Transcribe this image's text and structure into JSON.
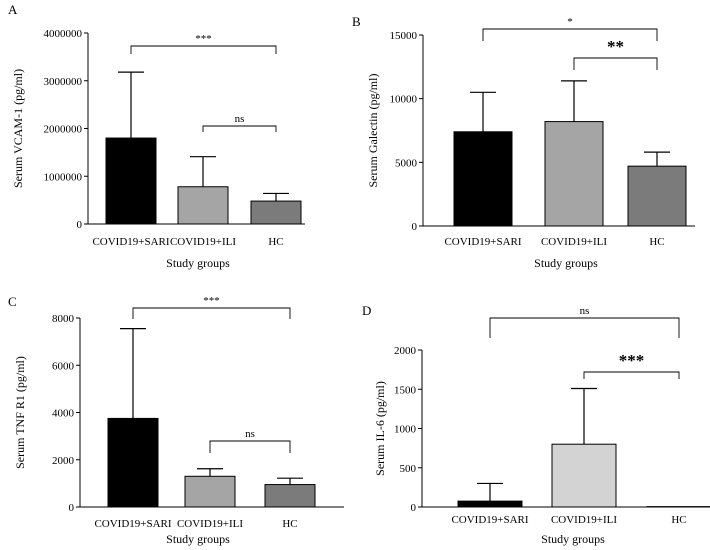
{
  "figure_title": "",
  "chart_data": [
    {
      "panel": "A",
      "type": "bar",
      "title": "",
      "xlabel": "Study groups",
      "ylabel": "Serum VCAM-1 (pg/ml)",
      "categories": [
        "COVID19+SARI",
        "COVID19+ILI",
        "HC"
      ],
      "values": [
        1800000,
        780000,
        480000
      ],
      "errors": [
        1380000,
        630000,
        160000
      ],
      "bar_colors": [
        "#000000",
        "#a5a5a5",
        "#7b7b7b"
      ],
      "ylim": [
        0,
        4000000
      ],
      "yticks": [
        "0",
        "1000000",
        "2000000",
        "3000000",
        "4000000"
      ],
      "significance": [
        {
          "from": 0,
          "to": 2,
          "label": "***",
          "size": "small"
        },
        {
          "from": 1,
          "to": 2,
          "label": "ns",
          "size": "small"
        }
      ]
    },
    {
      "panel": "B",
      "type": "bar",
      "title": "",
      "xlabel": "Study groups",
      "ylabel": "Serum Galectin (pg/ml)",
      "categories": [
        "COVID19+SARI",
        "COVID19+ILI",
        "HC"
      ],
      "values": [
        7400,
        8200,
        4700
      ],
      "errors": [
        3100,
        3200,
        1100
      ],
      "bar_colors": [
        "#000000",
        "#a5a5a5",
        "#7b7b7b"
      ],
      "ylim": [
        0,
        15000
      ],
      "yticks": [
        "0",
        "5000",
        "10000",
        "15000"
      ],
      "significance": [
        {
          "from": 0,
          "to": 2,
          "label": "*",
          "size": "small"
        },
        {
          "from": 1,
          "to": 2,
          "label": "**",
          "size": "large"
        }
      ]
    },
    {
      "panel": "C",
      "type": "bar",
      "title": "",
      "xlabel": "Study groups",
      "ylabel": "Serum TNF R1 (pg/ml)",
      "categories": [
        "COVID19+SARI",
        "COVID19+ILI",
        "HC"
      ],
      "values": [
        3750,
        1300,
        950
      ],
      "errors": [
        3800,
        320,
        270
      ],
      "bar_colors": [
        "#000000",
        "#a5a5a5",
        "#7b7b7b"
      ],
      "ylim": [
        0,
        8000
      ],
      "yticks": [
        "0",
        "2000",
        "4000",
        "6000",
        "8000"
      ],
      "significance": [
        {
          "from": 0,
          "to": 2,
          "label": "***",
          "size": "small"
        },
        {
          "from": 1,
          "to": 2,
          "label": "ns",
          "size": "small"
        }
      ]
    },
    {
      "panel": "D",
      "type": "bar",
      "title": "",
      "xlabel": "Study groups",
      "ylabel": "Serum IL-6 (pg/ml)",
      "categories": [
        "COVID19+SARI",
        "COVID19+ILI",
        "HC"
      ],
      "values": [
        75,
        800,
        5
      ],
      "errors": [
        225,
        710,
        0
      ],
      "bar_colors": [
        "#000000",
        "#d3d3d3",
        "#7b7b7b"
      ],
      "ylim": [
        0,
        2000
      ],
      "yticks": [
        "0",
        "500",
        "1000",
        "1500",
        "2000"
      ],
      "significance": [
        {
          "from": 0,
          "to": 2,
          "label": "ns",
          "size": "small"
        },
        {
          "from": 1,
          "to": 2,
          "label": "***",
          "size": "large"
        }
      ]
    }
  ]
}
